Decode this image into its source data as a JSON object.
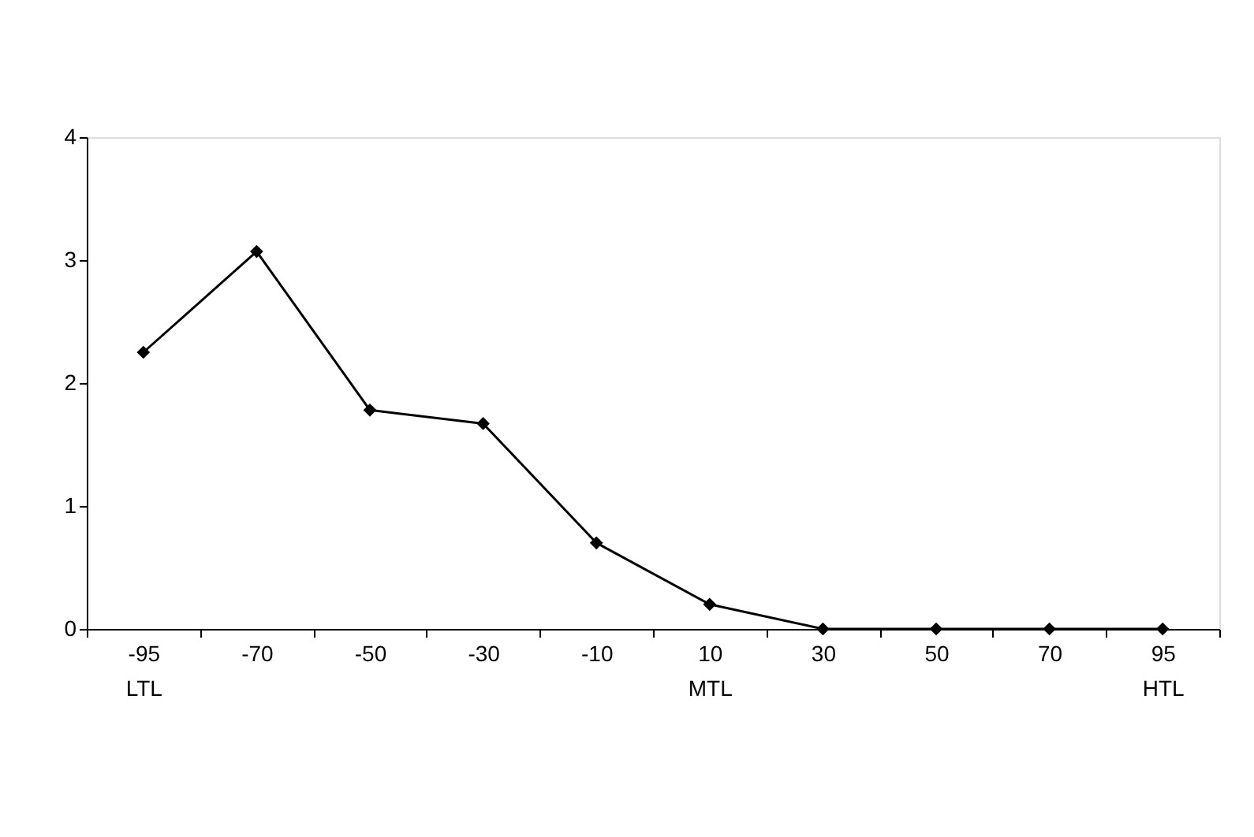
{
  "chart_data": {
    "type": "line",
    "categories": [
      "-95\nLTL",
      "-70",
      "-50",
      "-30",
      "-10",
      "10\nMTL",
      "30",
      "50",
      "70",
      "95\nHTL"
    ],
    "series": [
      {
        "color": "#000000",
        "values": [
          2.25,
          3.07,
          1.78,
          1.67,
          0.7,
          0.2,
          0,
          0,
          0,
          0
        ]
      }
    ],
    "ylim": [
      0,
      4
    ],
    "yticks": [
      0,
      1,
      2,
      3,
      4
    ],
    "grid": false,
    "marker": "diamond",
    "line_style": "solid"
  }
}
